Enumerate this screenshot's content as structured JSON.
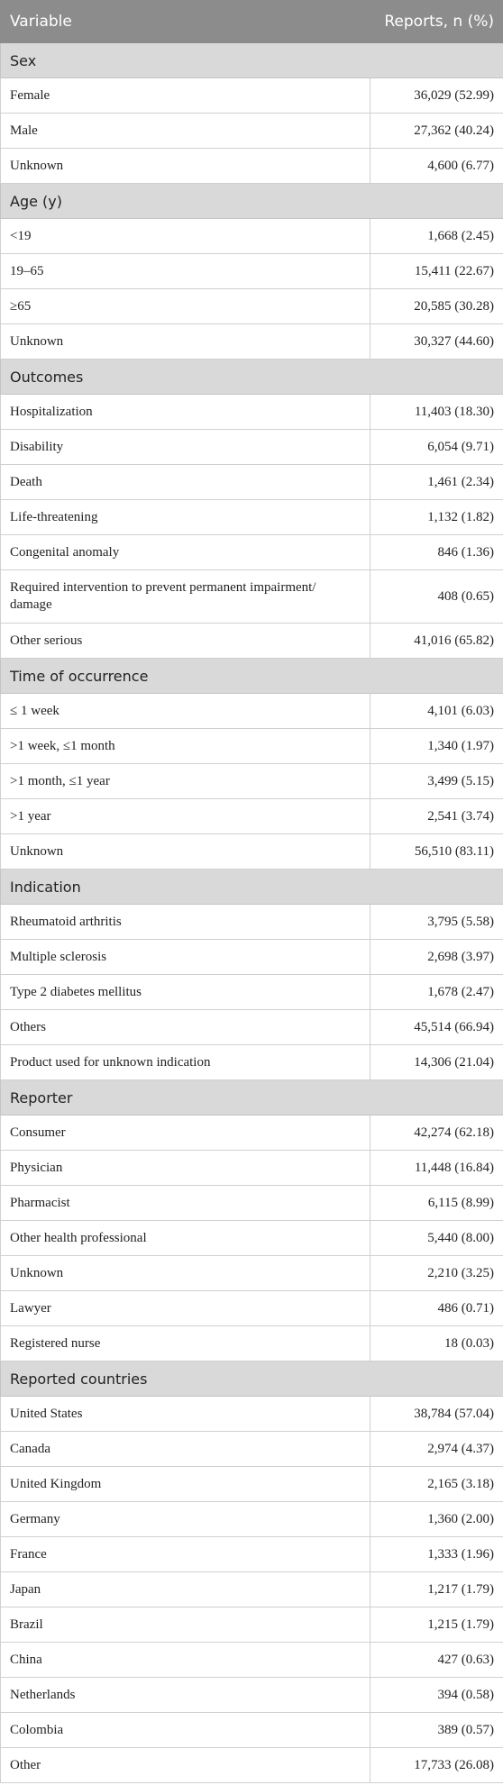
{
  "header": [
    "Variable",
    "Reports, n (%)"
  ],
  "sections": [
    {
      "title": "Sex",
      "rows": [
        [
          "Female",
          "36,029 (52.99)"
        ],
        [
          "Male",
          "27,362 (40.24)"
        ],
        [
          "Unknown",
          "4,600 (6.77)"
        ]
      ]
    },
    {
      "title": "Age (y)",
      "rows": [
        [
          "<19",
          "1,668 (2.45)"
        ],
        [
          "19–65",
          "15,411 (22.67)"
        ],
        [
          "≥65",
          "20,585 (30.28)"
        ],
        [
          "Unknown",
          "30,327 (44.60)"
        ]
      ]
    },
    {
      "title": "Outcomes",
      "rows": [
        [
          "Hospitalization",
          "11,403 (18.30)"
        ],
        [
          "Disability",
          "6,054 (9.71)"
        ],
        [
          "Death",
          "1,461 (2.34)"
        ],
        [
          "Life-threatening",
          "1,132 (1.82)"
        ],
        [
          "Congenital anomaly",
          "846 (1.36)"
        ],
        [
          "Required intervention to prevent permanent impairment/ damage",
          "408 (0.65)"
        ],
        [
          "Other serious",
          "41,016 (65.82)"
        ]
      ]
    },
    {
      "title": "Time of occurrence",
      "rows": [
        [
          "≤ 1 week",
          "4,101 (6.03)"
        ],
        [
          ">1 week, ≤1 month",
          "1,340 (1.97)"
        ],
        [
          ">1 month, ≤1 year",
          "3,499 (5.15)"
        ],
        [
          ">1 year",
          "2,541 (3.74)"
        ],
        [
          "Unknown",
          "56,510 (83.11)"
        ]
      ]
    },
    {
      "title": "Indication",
      "rows": [
        [
          "Rheumatoid arthritis",
          "3,795 (5.58)"
        ],
        [
          "Multiple sclerosis",
          "2,698 (3.97)"
        ],
        [
          "Type 2 diabetes mellitus",
          "1,678 (2.47)"
        ],
        [
          "Others",
          "45,514 (66.94)"
        ],
        [
          "Product used for unknown indication",
          "14,306 (21.04)"
        ]
      ]
    },
    {
      "title": "Reporter",
      "rows": [
        [
          "Consumer",
          "42,274 (62.18)"
        ],
        [
          "Physician",
          "11,448 (16.84)"
        ],
        [
          "Pharmacist",
          "6,115 (8.99)"
        ],
        [
          "Other health professional",
          "5,440 (8.00)"
        ],
        [
          "Unknown",
          "2,210 (3.25)"
        ],
        [
          "Lawyer",
          "486 (0.71)"
        ],
        [
          "Registered nurse",
          "18 (0.03)"
        ]
      ]
    },
    {
      "title": "Reported countries",
      "rows": [
        [
          "United States",
          "38,784 (57.04)"
        ],
        [
          "Canada",
          "2,974 (4.37)"
        ],
        [
          "United Kingdom",
          "2,165 (3.18)"
        ],
        [
          "Germany",
          "1,360 (2.00)"
        ],
        [
          "France",
          "1,333 (1.96)"
        ],
        [
          "Japan",
          "1,217 (1.79)"
        ],
        [
          "Brazil",
          "1,215 (1.79)"
        ],
        [
          "China",
          "427 (0.63)"
        ],
        [
          "Netherlands",
          "394 (0.58)"
        ],
        [
          "Colombia",
          "389 (0.57)"
        ],
        [
          "Other",
          "17,733 (26.08)"
        ]
      ]
    }
  ]
}
